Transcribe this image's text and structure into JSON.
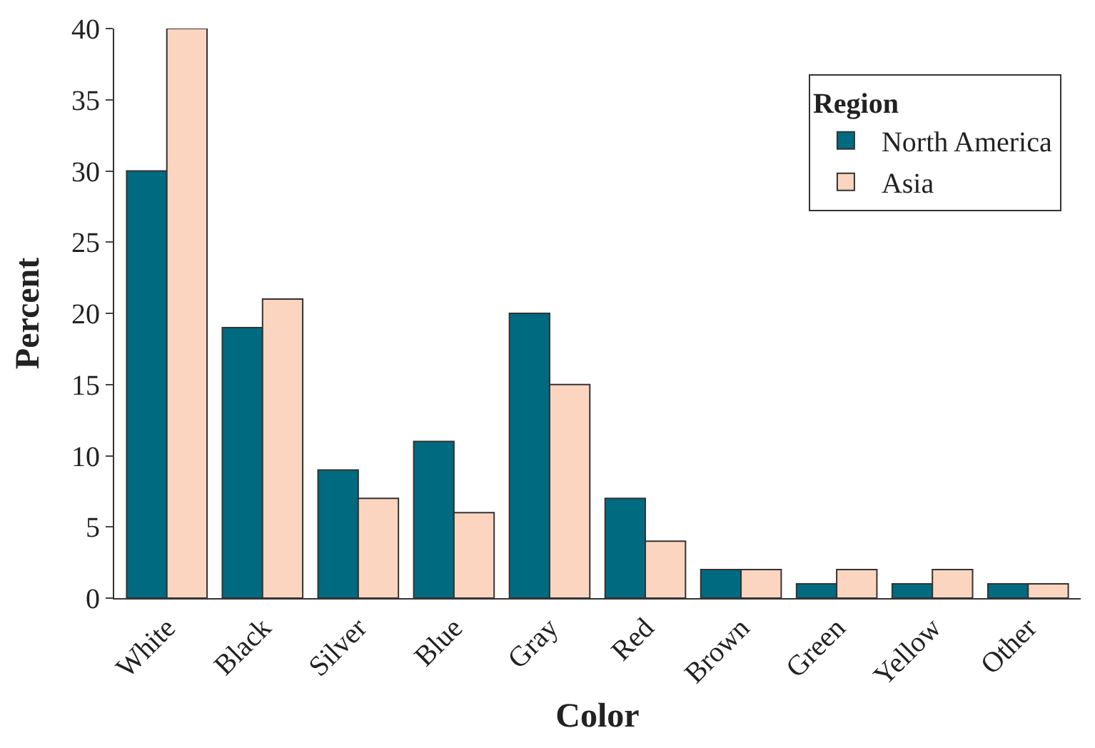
{
  "chart_data": {
    "type": "bar",
    "xlabel": "Color",
    "ylabel": "Percent",
    "legend_title": "Region",
    "legend": "top right",
    "categories": [
      "White",
      "Black",
      "Silver",
      "Blue",
      "Gray",
      "Red",
      "Brown",
      "Green",
      "Yellow",
      "Other"
    ],
    "series": [
      {
        "name": "North America",
        "color": "#006b80",
        "values": [
          30,
          19,
          9,
          11,
          20,
          7,
          2,
          1,
          1,
          1
        ]
      },
      {
        "name": "Asia",
        "color": "#fcd5c0",
        "values": [
          40,
          21,
          7,
          6,
          15,
          4,
          2,
          2,
          2,
          1
        ]
      }
    ],
    "ylim": [
      0,
      40
    ],
    "yticks": [
      0,
      5,
      10,
      15,
      20,
      25,
      30,
      35,
      40
    ]
  }
}
